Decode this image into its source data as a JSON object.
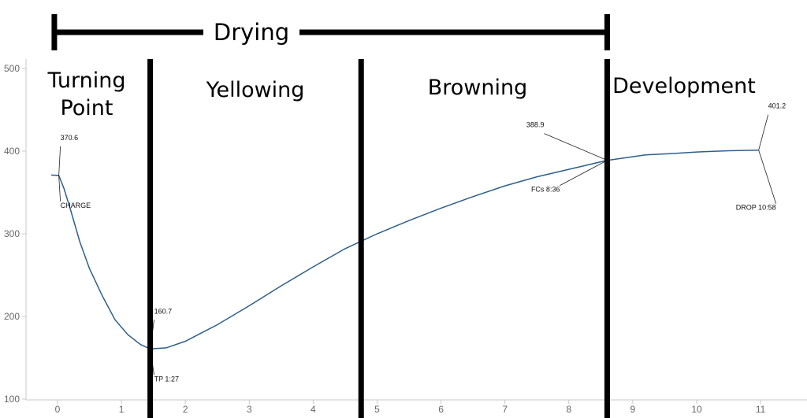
{
  "chart_data": {
    "type": "line",
    "title": "",
    "xlabel": "",
    "ylabel": "",
    "xlim": [
      -0.75,
      11.75
    ],
    "ylim": [
      100,
      510
    ],
    "x_ticks": [
      0,
      1,
      2,
      3,
      4,
      5,
      6,
      7,
      8,
      9,
      10,
      11
    ],
    "y_ticks": [
      100,
      200,
      300,
      400,
      500
    ],
    "grid": false,
    "line_color": "#2d5f8a",
    "series": [
      {
        "x": [
          -0.1,
          0.02,
          0.1,
          0.2,
          0.35,
          0.5,
          0.7,
          0.9,
          1.1,
          1.3,
          1.45,
          1.7,
          2.0,
          2.5,
          3.0,
          3.5,
          4.0,
          4.5,
          5.0,
          5.5,
          6.0,
          6.5,
          7.0,
          7.5,
          8.0,
          8.6,
          9.2,
          9.6,
          10.0,
          10.5,
          10.97
        ],
        "y": [
          371,
          370.6,
          355,
          330,
          290,
          258,
          225,
          196,
          178,
          166,
          160.7,
          162,
          170,
          190,
          213,
          237,
          260,
          282,
          300,
          316,
          331,
          345,
          358,
          369,
          378,
          388.9,
          395.5,
          397,
          399,
          400.5,
          401.2
        ]
      }
    ],
    "annotations": [
      {
        "value_label": "370.6",
        "event_label": "CHARGE",
        "x": 0.02,
        "y": 370.6
      },
      {
        "value_label": "160.7",
        "event_label": "TP 1:27",
        "x": 1.45,
        "y": 160.7
      },
      {
        "value_label": "388.9",
        "event_label": "FCs 8:36",
        "x": 8.6,
        "y": 388.9
      },
      {
        "value_label": "401.2",
        "event_label": "DROP 10:58",
        "x": 10.97,
        "y": 401.2
      }
    ],
    "phase_boundaries": [
      1.45,
      4.75,
      8.6
    ],
    "phases": [
      {
        "label_lines": [
          "Turning",
          "Point"
        ],
        "start": 0.0,
        "end": 1.45
      },
      {
        "label_lines": [
          "Yellowing"
        ],
        "start": 1.45,
        "end": 4.75
      },
      {
        "label_lines": [
          "Browning"
        ],
        "start": 4.75,
        "end": 8.6
      },
      {
        "label_lines": [
          "Development"
        ],
        "start": 8.6,
        "end": 11.75
      }
    ],
    "drying_bracket": {
      "label": "Drying",
      "start": -0.05,
      "end": 8.6
    }
  }
}
